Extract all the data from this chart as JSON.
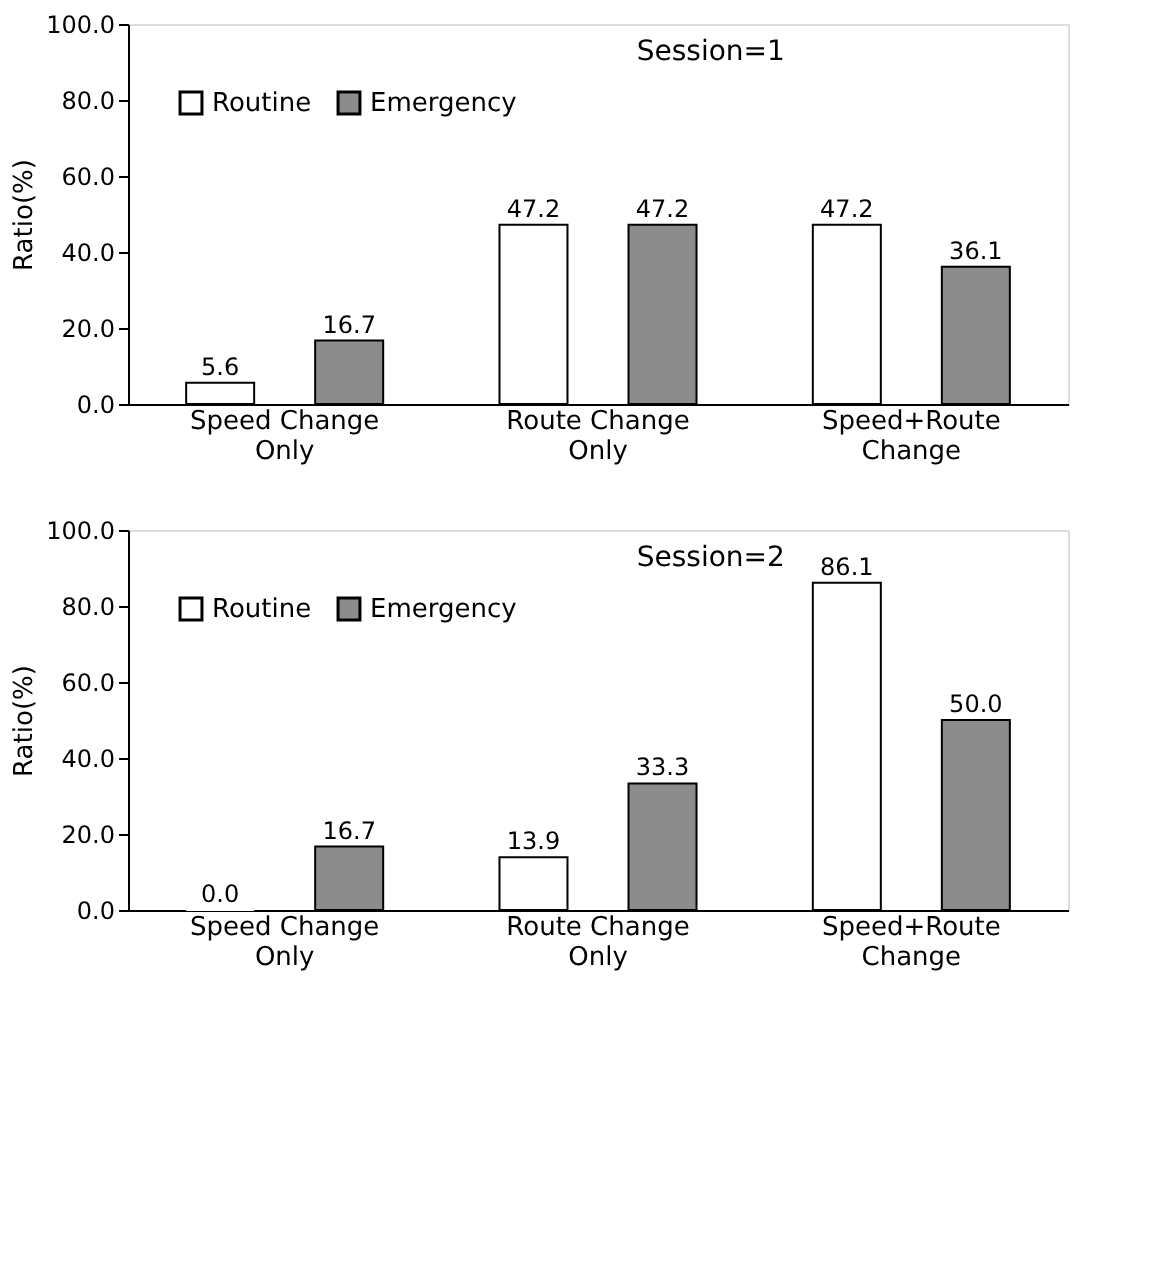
{
  "chart_data": [
    {
      "type": "bar",
      "title": "Session=1",
      "categories": [
        "Speed Change Only",
        "Route Change Only",
        "Speed+Route Change"
      ],
      "series": [
        {
          "name": "Routine",
          "color": "#ffffff",
          "values": [
            5.6,
            47.2,
            47.2
          ],
          "value_labels": [
            "5.6",
            "47.2",
            "47.2"
          ]
        },
        {
          "name": "Emergency",
          "color": "#8c8c8c",
          "values": [
            16.7,
            47.2,
            36.1
          ],
          "value_labels": [
            "16.7",
            "47.2",
            "36.1"
          ]
        }
      ],
      "ylabel": "Ratio(%)",
      "ylim": [
        0,
        100
      ],
      "yticks": [
        {
          "value": 0,
          "label": "0.0"
        },
        {
          "value": 20,
          "label": "20.0"
        },
        {
          "value": 40,
          "label": "40.0"
        },
        {
          "value": 60,
          "label": "60.0"
        },
        {
          "value": 80,
          "label": "80.0"
        },
        {
          "value": 100,
          "label": "100.0"
        }
      ],
      "legend": "top left",
      "grid": false
    },
    {
      "type": "bar",
      "title": "Session=2",
      "categories": [
        "Speed Change Only",
        "Route Change Only",
        "Speed+Route Change"
      ],
      "series": [
        {
          "name": "Routine",
          "color": "#ffffff",
          "values": [
            0.0,
            13.9,
            86.1
          ],
          "value_labels": [
            "0.0",
            "13.9",
            "86.1"
          ]
        },
        {
          "name": "Emergency",
          "color": "#8c8c8c",
          "values": [
            16.7,
            33.3,
            50.0
          ],
          "value_labels": [
            "16.7",
            "33.3",
            "50.0"
          ]
        }
      ],
      "ylabel": "Ratio(%)",
      "ylim": [
        0,
        100
      ],
      "yticks": [
        {
          "value": 0,
          "label": "0.0"
        },
        {
          "value": 20,
          "label": "20.0"
        },
        {
          "value": 40,
          "label": "40.0"
        },
        {
          "value": 60,
          "label": "60.0"
        },
        {
          "value": 80,
          "label": "80.0"
        },
        {
          "value": 100,
          "label": "100.0"
        }
      ],
      "legend": "top left",
      "grid": false
    }
  ]
}
